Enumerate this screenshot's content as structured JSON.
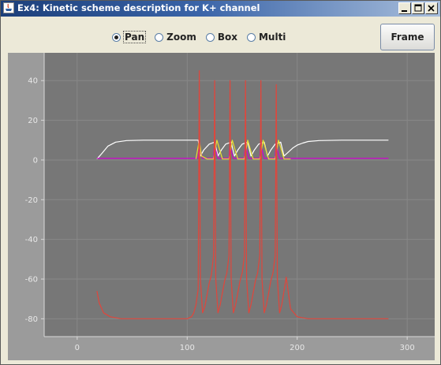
{
  "window": {
    "title": "Ex4: Kinetic scheme description for K+ channel",
    "controls": [
      "minimize-icon",
      "maximize-icon",
      "close-icon"
    ]
  },
  "toolbar": {
    "modes": [
      {
        "label": "Pan",
        "selected": true
      },
      {
        "label": "Zoom",
        "selected": false
      },
      {
        "label": "Box",
        "selected": false
      },
      {
        "label": "Multi",
        "selected": false
      }
    ],
    "frame_label": "Frame"
  },
  "chart_data": {
    "type": "line",
    "title": "",
    "xlabel": "",
    "ylabel": "",
    "xlim": [
      -30,
      325
    ],
    "ylim": [
      -89,
      54
    ],
    "x_ticks": [
      "0",
      "100",
      "200",
      "300"
    ],
    "y_ticks": [
      "40",
      "20",
      "0",
      "-20",
      "-40",
      "-60",
      "-80"
    ],
    "grid": true,
    "colors": {
      "background": "#777777",
      "grid": "#888888",
      "voltage": "#e0463c",
      "white_trace": "#ffffff",
      "magenta_trace": "#d000d0",
      "yellow_trace": "#e8e030"
    },
    "series": [
      {
        "name": "",
        "color": "#ffffff",
        "x": [
          18,
          22,
          28,
          35,
          45,
          60,
          80,
          100,
          110,
          112,
          115,
          120,
          125,
          128,
          131,
          135,
          140,
          143,
          146,
          150,
          155,
          158,
          161,
          165,
          170,
          173,
          176,
          180,
          185,
          188,
          192,
          196,
          200,
          205,
          210,
          220,
          240,
          260,
          283
        ],
        "y": [
          0.5,
          3,
          7,
          9,
          9.8,
          10,
          10,
          10,
          10,
          2,
          5,
          8,
          9,
          2,
          5,
          8,
          9,
          2,
          5,
          8,
          9,
          2,
          5,
          8,
          9,
          2,
          5,
          8,
          9,
          2,
          4,
          6,
          7.5,
          8.5,
          9.3,
          9.8,
          10,
          10,
          10
        ]
      },
      {
        "name": "",
        "color": "#d000d0",
        "x": [
          18,
          100,
          108,
          110,
          111,
          112,
          114,
          122,
          124,
          125,
          126,
          128,
          136,
          138,
          139,
          140,
          142,
          150,
          152,
          153,
          154,
          156,
          164,
          166,
          167,
          168,
          170,
          178,
          180,
          181,
          182,
          184,
          190,
          200,
          283
        ],
        "y": [
          0.8,
          0.8,
          0.8,
          1,
          11,
          5,
          0.8,
          0.8,
          1,
          11,
          5,
          0.8,
          0.8,
          1,
          11,
          5,
          0.8,
          0.8,
          1,
          11,
          5,
          0.8,
          0.8,
          1,
          11,
          5,
          0.8,
          0.8,
          1,
          11,
          5,
          0.8,
          0.8,
          0.8,
          0.8
        ]
      },
      {
        "name": "",
        "color": "#e8e030",
        "x": [
          108,
          111,
          113,
          118,
          124,
          127,
          132,
          138,
          141,
          146,
          152,
          155,
          160,
          166,
          169,
          174,
          180,
          183,
          188,
          194
        ],
        "y": [
          0.5,
          10,
          2,
          0.5,
          0.5,
          10,
          0.5,
          0.5,
          10,
          0.5,
          0.5,
          10,
          0.5,
          0.5,
          10,
          0.5,
          0.5,
          10,
          0.5,
          0.5
        ]
      },
      {
        "name": "",
        "color": "#e0463c",
        "x": [
          18,
          20,
          24,
          30,
          40,
          60,
          80,
          100,
          104,
          106,
          108,
          110,
          111,
          112,
          114,
          116,
          118,
          120,
          122,
          124,
          125,
          126,
          128,
          130,
          132,
          134,
          136,
          138,
          139,
          140,
          142,
          144,
          146,
          148,
          150,
          152,
          153,
          154,
          156,
          158,
          160,
          162,
          164,
          166,
          167,
          168,
          170,
          172,
          174,
          176,
          178,
          180,
          181,
          182,
          184,
          186,
          188,
          190,
          194,
          200,
          210,
          230,
          260,
          283
        ],
        "y": [
          -66,
          -72,
          -77,
          -79,
          -80,
          -80,
          -80,
          -80,
          -79,
          -77,
          -73,
          -65,
          45,
          -60,
          -77,
          -74,
          -68,
          -62,
          -58,
          -48,
          40,
          -60,
          -77,
          -73,
          -67,
          -61,
          -57,
          -48,
          40,
          -60,
          -77,
          -73,
          -67,
          -61,
          -57,
          -48,
          40,
          -60,
          -77,
          -73,
          -67,
          -61,
          -57,
          -48,
          40,
          -60,
          -77,
          -73,
          -67,
          -61,
          -57,
          -48,
          38,
          -60,
          -77,
          -73,
          -66,
          -59,
          -75,
          -79,
          -80,
          -80,
          -80,
          -80
        ]
      }
    ]
  }
}
